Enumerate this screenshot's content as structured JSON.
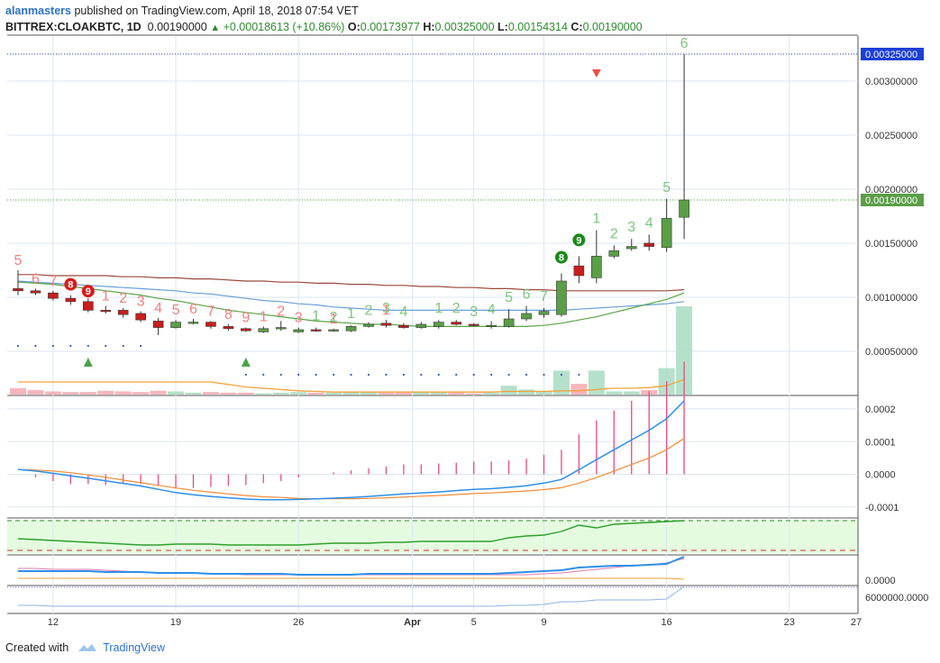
{
  "header": {
    "author": "alanmasters",
    "published": "published on TradingView.com, April 18, 2018 07:54 VET",
    "symbol": "BITTREX:CLOAKBTC, 1D",
    "last": "0.00190000",
    "change": "+0.00018613 (+10.86%)",
    "o_label": "O:",
    "o": "0.00173977",
    "h_label": "H:",
    "h": "0.00325000",
    "l_label": "L:",
    "l": "0.00154314",
    "c_label": "C:",
    "c": "0.00190000"
  },
  "footer": {
    "created_with": "Created with",
    "brand": "TradingView"
  },
  "colors": {
    "up": "#5b9e47",
    "down": "#c81e1e",
    "grid": "#dde6f2",
    "ma_long": "#9b4a3a",
    "ma_mid": "#6a9fd8",
    "ma_short": "#5aa346",
    "vol_ma": "#f2a23a",
    "macd": "#2d8fe6",
    "signal": "#f28b3a",
    "hist": "#e64a86",
    "rsi_line": "#2ea02e",
    "price_up_tag": "#5b9e47",
    "price_high_tag": "#1c3fd6"
  },
  "chart_data": {
    "type": "candlestick",
    "x_tick_labels": [
      "12",
      "19",
      "26",
      "Apr",
      "5",
      "9",
      "16",
      "23",
      "27"
    ],
    "price_axis_labels": [
      "0.00300000",
      "0.00250000",
      "0.00200000",
      "0.00150000",
      "0.00100000",
      "0.00050000"
    ],
    "price_axis_values": [
      0.003,
      0.0025,
      0.002,
      0.0015,
      0.001,
      0.0005
    ],
    "price_tags": [
      {
        "label": "0.00325000",
        "value": 0.00325
      },
      {
        "label": "0.00190000",
        "value": 0.0019
      }
    ],
    "candles": [
      {
        "o": 0.00108,
        "h": 0.00125,
        "l": 0.00102,
        "c": 0.00106
      },
      {
        "o": 0.00106,
        "h": 0.00108,
        "l": 0.00102,
        "c": 0.00104
      },
      {
        "o": 0.00104,
        "h": 0.00106,
        "l": 0.00097,
        "c": 0.00099
      },
      {
        "o": 0.00099,
        "h": 0.00102,
        "l": 0.00093,
        "c": 0.00096
      },
      {
        "o": 0.00096,
        "h": 0.00099,
        "l": 0.00086,
        "c": 0.00088
      },
      {
        "o": 0.00088,
        "h": 0.00092,
        "l": 0.00085,
        "c": 0.00087
      },
      {
        "o": 0.00088,
        "h": 0.0009,
        "l": 0.00081,
        "c": 0.00084
      },
      {
        "o": 0.00085,
        "h": 0.00087,
        "l": 0.00077,
        "c": 0.00079
      },
      {
        "o": 0.00078,
        "h": 0.00081,
        "l": 0.00065,
        "c": 0.00072
      },
      {
        "o": 0.00072,
        "h": 0.00079,
        "l": 0.00071,
        "c": 0.00077
      },
      {
        "o": 0.00077,
        "h": 0.0008,
        "l": 0.00075,
        "c": 0.00077
      },
      {
        "o": 0.00077,
        "h": 0.00078,
        "l": 0.00071,
        "c": 0.00073
      },
      {
        "o": 0.00073,
        "h": 0.00075,
        "l": 0.00069,
        "c": 0.00071
      },
      {
        "o": 0.00071,
        "h": 0.00072,
        "l": 0.00068,
        "c": 0.00069
      },
      {
        "o": 0.00068,
        "h": 0.00073,
        "l": 0.00067,
        "c": 0.00071
      },
      {
        "o": 0.00071,
        "h": 0.00078,
        "l": 0.00069,
        "c": 0.00072
      },
      {
        "o": 0.00068,
        "h": 0.00072,
        "l": 0.00067,
        "c": 0.0007
      },
      {
        "o": 0.0007,
        "h": 0.00072,
        "l": 0.00068,
        "c": 0.00069
      },
      {
        "o": 0.00069,
        "h": 0.00071,
        "l": 0.00068,
        "c": 0.0007
      },
      {
        "o": 0.00069,
        "h": 0.00074,
        "l": 0.00068,
        "c": 0.00073
      },
      {
        "o": 0.00073,
        "h": 0.00077,
        "l": 0.00072,
        "c": 0.00075
      },
      {
        "o": 0.00076,
        "h": 0.00079,
        "l": 0.00072,
        "c": 0.00074
      },
      {
        "o": 0.00074,
        "h": 0.00076,
        "l": 0.00071,
        "c": 0.00072
      },
      {
        "o": 0.00072,
        "h": 0.00077,
        "l": 0.00071,
        "c": 0.00075
      },
      {
        "o": 0.00073,
        "h": 0.00079,
        "l": 0.00071,
        "c": 0.00077
      },
      {
        "o": 0.00077,
        "h": 0.00079,
        "l": 0.00074,
        "c": 0.00075
      },
      {
        "o": 0.00075,
        "h": 0.00076,
        "l": 0.00073,
        "c": 0.00074
      },
      {
        "o": 0.00073,
        "h": 0.00078,
        "l": 0.00071,
        "c": 0.00074
      },
      {
        "o": 0.00073,
        "h": 0.00089,
        "l": 0.00072,
        "c": 0.0008
      },
      {
        "o": 0.0008,
        "h": 0.00092,
        "l": 0.00078,
        "c": 0.00085
      },
      {
        "o": 0.00084,
        "h": 0.0009,
        "l": 0.00081,
        "c": 0.00087
      },
      {
        "o": 0.00084,
        "h": 0.00122,
        "l": 0.00082,
        "c": 0.00115
      },
      {
        "o": 0.00129,
        "h": 0.00138,
        "l": 0.00113,
        "c": 0.0012
      },
      {
        "o": 0.00118,
        "h": 0.00162,
        "l": 0.00113,
        "c": 0.00138
      },
      {
        "o": 0.00138,
        "h": 0.00148,
        "l": 0.00136,
        "c": 0.00143
      },
      {
        "o": 0.00145,
        "h": 0.00154,
        "l": 0.00143,
        "c": 0.00147
      },
      {
        "o": 0.0015,
        "h": 0.00158,
        "l": 0.00143,
        "c": 0.00147
      },
      {
        "o": 0.00146,
        "h": 0.00191,
        "l": 0.00142,
        "c": 0.00173
      },
      {
        "o": 0.00174,
        "h": 0.00325,
        "l": 0.00154,
        "c": 0.0019
      }
    ],
    "volume": [
      1e-05,
      7e-06,
      5e-06,
      4e-06,
      4e-06,
      6e-06,
      5e-06,
      4e-06,
      6e-06,
      5e-06,
      3e-06,
      4e-06,
      3e-06,
      3e-06,
      2e-06,
      3e-06,
      4e-06,
      3e-06,
      3e-06,
      4e-06,
      4e-06,
      3e-06,
      3e-06,
      5e-06,
      5e-06,
      3e-06,
      2e-06,
      3e-06,
      1.4e-05,
      8e-06,
      6e-06,
      3.8e-05,
      1.7e-05,
      3.8e-05,
      5e-06,
      5e-06,
      7e-06,
      4.2e-05,
      0.00014
    ],
    "ma_long": [
      0.00121,
      0.00121,
      0.0012,
      0.0012,
      0.0012,
      0.0012,
      0.00119,
      0.00119,
      0.00118,
      0.00118,
      0.00117,
      0.00117,
      0.00116,
      0.00115,
      0.00115,
      0.00114,
      0.00114,
      0.00113,
      0.00113,
      0.00112,
      0.00112,
      0.00111,
      0.00111,
      0.0011,
      0.0011,
      0.00109,
      0.00109,
      0.00108,
      0.00108,
      0.00107,
      0.00107,
      0.00106,
      0.00106,
      0.00106,
      0.00106,
      0.00106,
      0.00106,
      0.00106,
      0.00107
    ],
    "ma_mid": [
      0.00115,
      0.00114,
      0.00113,
      0.00112,
      0.00111,
      0.0011,
      0.00109,
      0.00108,
      0.00107,
      0.00106,
      0.00104,
      0.00103,
      0.00101,
      0.00099,
      0.00097,
      0.00096,
      0.00094,
      0.00093,
      0.00091,
      0.0009,
      0.00089,
      0.00088,
      0.00088,
      0.00088,
      0.00088,
      0.00088,
      0.00088,
      0.00088,
      0.00088,
      0.00088,
      0.00088,
      0.00088,
      0.00089,
      0.0009,
      0.00091,
      0.00092,
      0.00093,
      0.00094,
      0.00096
    ],
    "ma_short": [
      0.00114,
      0.00113,
      0.00112,
      0.0011,
      0.00108,
      0.00106,
      0.00104,
      0.00102,
      0.00099,
      0.00097,
      0.00094,
      0.00091,
      0.00088,
      0.00086,
      0.00084,
      0.00082,
      0.0008,
      0.00078,
      0.00077,
      0.00076,
      0.00075,
      0.00075,
      0.00074,
      0.00073,
      0.00073,
      0.00073,
      0.00073,
      0.00073,
      0.00073,
      0.00073,
      0.00074,
      0.00076,
      0.00079,
      0.00082,
      0.00086,
      0.0009,
      0.00094,
      0.00098,
      0.00104
    ],
    "vol_ma": [
      2e-05,
      2e-05,
      2e-05,
      2e-05,
      2e-05,
      2e-05,
      2e-05,
      2e-05,
      2e-05,
      2e-05,
      2e-05,
      2e-05,
      1.6e-05,
      1.2e-05,
      1e-05,
      8e-06,
      6e-06,
      5e-06,
      4e-06,
      4e-06,
      4e-06,
      4e-06,
      4e-06,
      4e-06,
      4e-06,
      4e-06,
      4e-06,
      4e-06,
      5e-06,
      5e-06,
      5e-06,
      6e-06,
      6e-06,
      8e-06,
      1e-05,
      1e-05,
      1.1e-05,
      1.4e-05,
      2.4e-05
    ],
    "td_setup_red": [
      {
        "i": 0,
        "t": "5"
      },
      {
        "i": 1,
        "t": "6"
      },
      {
        "i": 2,
        "t": "7"
      },
      {
        "i": 3,
        "t": "8"
      },
      {
        "i": 4,
        "t": "9"
      },
      {
        "i": 5,
        "t": "1"
      },
      {
        "i": 6,
        "t": "2"
      },
      {
        "i": 7,
        "t": "3"
      },
      {
        "i": 8,
        "t": "4"
      },
      {
        "i": 9,
        "t": "5"
      },
      {
        "i": 10,
        "t": "6"
      },
      {
        "i": 11,
        "t": "7"
      },
      {
        "i": 12,
        "t": "8"
      },
      {
        "i": 13,
        "t": "9"
      },
      {
        "i": 14,
        "t": "1"
      },
      {
        "i": 15,
        "t": "2"
      },
      {
        "i": 16,
        "t": "3"
      },
      {
        "i": 18,
        "t": "1"
      },
      {
        "i": 21,
        "t": "1"
      }
    ],
    "td_setup_green": [
      {
        "i": 17,
        "t": "1"
      },
      {
        "i": 18,
        "t": "2"
      },
      {
        "i": 19,
        "t": "1"
      },
      {
        "i": 20,
        "t": "2"
      },
      {
        "i": 21,
        "t": "3"
      },
      {
        "i": 22,
        "t": "4"
      },
      {
        "i": 24,
        "t": "1"
      },
      {
        "i": 25,
        "t": "2"
      },
      {
        "i": 26,
        "t": "3"
      },
      {
        "i": 27,
        "t": "4"
      },
      {
        "i": 28,
        "t": "5"
      },
      {
        "i": 29,
        "t": "6"
      },
      {
        "i": 30,
        "t": "7"
      },
      {
        "i": 31,
        "t": "8"
      },
      {
        "i": 32,
        "t": "9"
      },
      {
        "i": 33,
        "t": "1"
      },
      {
        "i": 34,
        "t": "2"
      },
      {
        "i": 35,
        "t": "3"
      },
      {
        "i": 36,
        "t": "4"
      },
      {
        "i": 37,
        "t": "5"
      },
      {
        "i": 38,
        "t": "6"
      }
    ],
    "td_countdown": [
      {
        "i": 3,
        "t": "8"
      },
      {
        "i": 4,
        "t": "9"
      },
      {
        "i": 31,
        "t": "8"
      },
      {
        "i": 32,
        "t": "9"
      }
    ],
    "macd_axis_labels": [
      "0.0002",
      "0.0001",
      "0.0000",
      "-0.0001"
    ],
    "macd_axis_values": [
      0.0002,
      0.0001,
      0.0,
      -0.0001
    ],
    "macd": [
      1.5e-05,
      1e-05,
      3e-06,
      -5e-06,
      -1.2e-05,
      -2e-05,
      -2.8e-05,
      -3.6e-05,
      -4.6e-05,
      -5.6e-05,
      -6.3e-05,
      -6.8e-05,
      -7.2e-05,
      -7.6e-05,
      -7.8e-05,
      -7.8e-05,
      -7.7e-05,
      -7.5e-05,
      -7.3e-05,
      -7.1e-05,
      -6.8e-05,
      -6.4e-05,
      -6e-05,
      -5.7e-05,
      -5.4e-05,
      -5e-05,
      -4.6e-05,
      -4.4e-05,
      -4e-05,
      -3.5e-05,
      -2.7e-05,
      -1.6e-05,
      1.4e-05,
      4.5e-05,
      7.5e-05,
      0.000105,
      0.000135,
      0.00017,
      0.000225
    ],
    "signal": [
      1.5e-05,
      1.3e-05,
      1e-05,
      5e-06,
      -2e-06,
      -9e-06,
      -1.8e-05,
      -2.6e-05,
      -3.4e-05,
      -4.2e-05,
      -4.9e-05,
      -5.5e-05,
      -6e-05,
      -6.5e-05,
      -6.9e-05,
      -7.1e-05,
      -7.4e-05,
      -7.5e-05,
      -7.5e-05,
      -7.5e-05,
      -7.4e-05,
      -7.2e-05,
      -7e-05,
      -6.7e-05,
      -6.5e-05,
      -6.2e-05,
      -5.9e-05,
      -5.7e-05,
      -5.4e-05,
      -5.1e-05,
      -4.7e-05,
      -4.1e-05,
      -2.7e-05,
      -1e-05,
      1e-05,
      3e-05,
      5e-05,
      7.5e-05,
      0.00011
    ],
    "rsi_axis_label": "0.0000",
    "vol_axis_label": "6000000.0000"
  }
}
